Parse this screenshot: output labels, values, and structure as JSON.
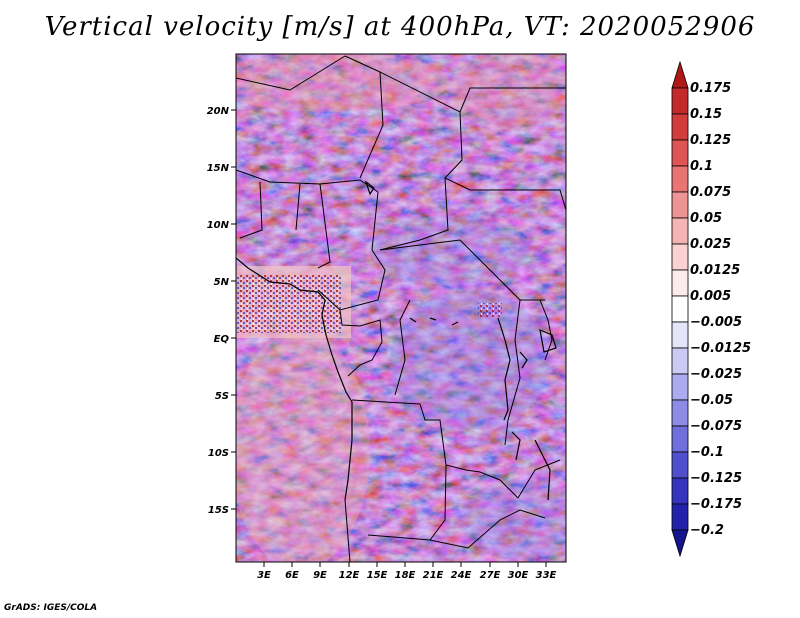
{
  "title": "Vertical velocity [m/s] at 400hPa, VT: 2020052906",
  "credit": "GrADS: IGES/COLA",
  "map": {
    "lat_labels": [
      "20N",
      "15N",
      "10N",
      "5N",
      "EQ",
      "5S",
      "10S",
      "15S"
    ],
    "lon_labels": [
      "3E",
      "6E",
      "9E",
      "12E",
      "15E",
      "18E",
      "21E",
      "24E",
      "27E",
      "30E",
      "33E"
    ]
  },
  "colorbar": {
    "levels": [
      "0.175",
      "0.15",
      "0.125",
      "0.1",
      "0.075",
      "0.05",
      "0.025",
      "0.0125",
      "0.005",
      "−0.005",
      "−0.0125",
      "−0.025",
      "−0.05",
      "−0.075",
      "−0.1",
      "−0.125",
      "−0.175",
      "−0.2"
    ],
    "colors": [
      "#b01818",
      "#c42a2a",
      "#d23c3c",
      "#df5555",
      "#e87474",
      "#ef9494",
      "#f5b4b4",
      "#fad2d2",
      "#fdeaea",
      "#ffffff",
      "#e4e4fb",
      "#cacaf5",
      "#ababef",
      "#8c8ce6",
      "#6f6fdc",
      "#5050cf",
      "#3434bf",
      "#2222ad",
      "#14148f"
    ]
  }
}
